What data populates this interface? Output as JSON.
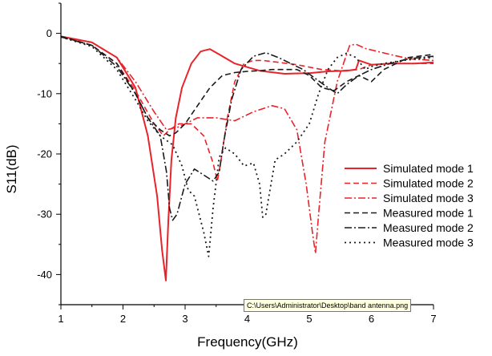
{
  "chart_data": {
    "type": "line",
    "title": "",
    "xlabel": "Frequency(GHz)",
    "ylabel": "S11(dB)",
    "xlim": [
      1,
      7
    ],
    "ylim": [
      -45,
      5
    ],
    "x_ticks": [
      1,
      2,
      3,
      4,
      5,
      6,
      7
    ],
    "y_ticks": [
      0,
      -10,
      -20,
      -30,
      -40
    ],
    "grid": false,
    "legend_position": "right",
    "series": [
      {
        "name": "Simulated mode 1",
        "color": "#e8232a",
        "dash": "solid",
        "x": [
          1.0,
          1.5,
          1.9,
          2.2,
          2.4,
          2.55,
          2.63,
          2.69,
          2.73,
          2.78,
          2.85,
          2.95,
          3.1,
          3.25,
          3.4,
          3.55,
          3.8,
          4.2,
          4.6,
          5.0,
          5.3,
          5.6,
          5.75,
          5.8,
          6.0,
          6.3,
          6.7,
          7.0
        ],
        "y": [
          -0.5,
          -1.5,
          -4,
          -9,
          -17,
          -27,
          -36,
          -41,
          -31,
          -21,
          -14,
          -9,
          -5,
          -3,
          -2.6,
          -3.5,
          -5,
          -6.2,
          -6.7,
          -6.6,
          -6.3,
          -6.2,
          -6.0,
          -4.5,
          -5.2,
          -5.0,
          -5.0,
          -4.8
        ]
      },
      {
        "name": "Simulated mode 2",
        "color": "#e8232a",
        "dash": "dashed",
        "x": [
          1.0,
          1.5,
          1.9,
          2.2,
          2.5,
          2.65,
          2.75,
          2.9,
          3.1,
          3.3,
          3.45,
          3.52,
          3.58,
          3.68,
          3.8,
          3.95,
          4.1,
          4.25,
          4.5,
          4.8,
          5.2,
          5.5,
          5.8,
          6.0,
          6.3,
          7.0
        ],
        "y": [
          -0.5,
          -2,
          -5,
          -9.5,
          -15,
          -17,
          -16,
          -15,
          -15,
          -17,
          -21.5,
          -24.5,
          -21,
          -14,
          -8,
          -5,
          -4.5,
          -4.5,
          -4.8,
          -5.2,
          -6,
          -6.2,
          -6,
          -5.2,
          -5.0,
          -5.0
        ]
      },
      {
        "name": "Simulated mode 3",
        "color": "#e8232a",
        "dash": "dashdot",
        "x": [
          1.0,
          1.5,
          1.9,
          2.2,
          2.5,
          2.7,
          2.9,
          3.2,
          3.5,
          3.8,
          4.1,
          4.4,
          4.6,
          4.8,
          4.95,
          5.05,
          5.1,
          5.15,
          5.25,
          5.45,
          5.65,
          5.75,
          5.9,
          6.1,
          6.3,
          6.6,
          7.0
        ],
        "y": [
          -0.6,
          -1.5,
          -4,
          -8,
          -13,
          -16,
          -15.5,
          -14,
          -14,
          -14.5,
          -13,
          -12,
          -12.5,
          -16,
          -25,
          -33,
          -36.5,
          -30,
          -18,
          -8,
          -2,
          -1.8,
          -2.5,
          -3,
          -3.5,
          -4.2,
          -4.5
        ]
      },
      {
        "name": "Measured mode 1",
        "color": "#1a1a1a",
        "dash": "dashed",
        "x": [
          1.0,
          1.5,
          1.9,
          2.2,
          2.4,
          2.6,
          2.75,
          2.85,
          3.0,
          3.2,
          3.4,
          3.6,
          3.8,
          4.0,
          4.2,
          4.4,
          4.6,
          4.8,
          5.0,
          5.2,
          5.4,
          5.6,
          5.8,
          6.0,
          6.2,
          6.6,
          7.0
        ],
        "y": [
          -0.5,
          -2,
          -5,
          -10,
          -14,
          -16,
          -17,
          -16.5,
          -15,
          -12,
          -9,
          -7,
          -6.5,
          -6.3,
          -6.2,
          -6,
          -6,
          -6,
          -7,
          -9,
          -9.5,
          -8,
          -7,
          -8,
          -6,
          -4,
          -3.5
        ]
      },
      {
        "name": "Measured mode 2",
        "color": "#1a1a1a",
        "dash": "dashdot",
        "x": [
          1.0,
          1.5,
          1.9,
          2.2,
          2.4,
          2.6,
          2.7,
          2.75,
          2.8,
          2.87,
          3.0,
          3.15,
          3.3,
          3.45,
          3.55,
          3.62,
          3.75,
          3.9,
          4.1,
          4.3,
          4.5,
          4.7,
          4.9,
          5.1,
          5.3,
          5.45,
          5.6,
          5.8,
          6.0,
          6.3,
          6.6,
          7.0
        ],
        "y": [
          -0.6,
          -2,
          -5.5,
          -10,
          -14,
          -17,
          -23,
          -29,
          -31,
          -30,
          -25,
          -22.5,
          -23.5,
          -24.5,
          -23,
          -18,
          -11,
          -6,
          -3.8,
          -3.2,
          -4,
          -5,
          -6,
          -7.5,
          -9,
          -10,
          -8.5,
          -7,
          -6,
          -5,
          -4.2,
          -3.8
        ]
      },
      {
        "name": "Measured mode 3",
        "color": "#1a1a1a",
        "dash": "dotted",
        "x": [
          1.0,
          1.5,
          1.9,
          2.2,
          2.4,
          2.6,
          2.8,
          2.95,
          3.05,
          3.15,
          3.3,
          3.38,
          3.45,
          3.55,
          3.65,
          3.8,
          3.95,
          4.1,
          4.2,
          4.25,
          4.3,
          4.35,
          4.45,
          4.6,
          4.8,
          5.0,
          5.15,
          5.3,
          5.45,
          5.6,
          5.75,
          5.9,
          6.0,
          6.2,
          6.5,
          7.0
        ],
        "y": [
          -0.6,
          -2.2,
          -6,
          -11,
          -14.5,
          -17,
          -18.5,
          -22,
          -26,
          -27,
          -33,
          -37,
          -29,
          -20.5,
          -19,
          -20,
          -22,
          -21.5,
          -25,
          -30.5,
          -30,
          -27,
          -21,
          -20,
          -18,
          -15,
          -10,
          -6,
          -4,
          -3.3,
          -4,
          -6,
          -5.5,
          -5,
          -4.5,
          -4
        ]
      }
    ]
  },
  "tooltip": {
    "text": "C:\\Users\\Administrator\\Desktop\\band antenna.png"
  }
}
